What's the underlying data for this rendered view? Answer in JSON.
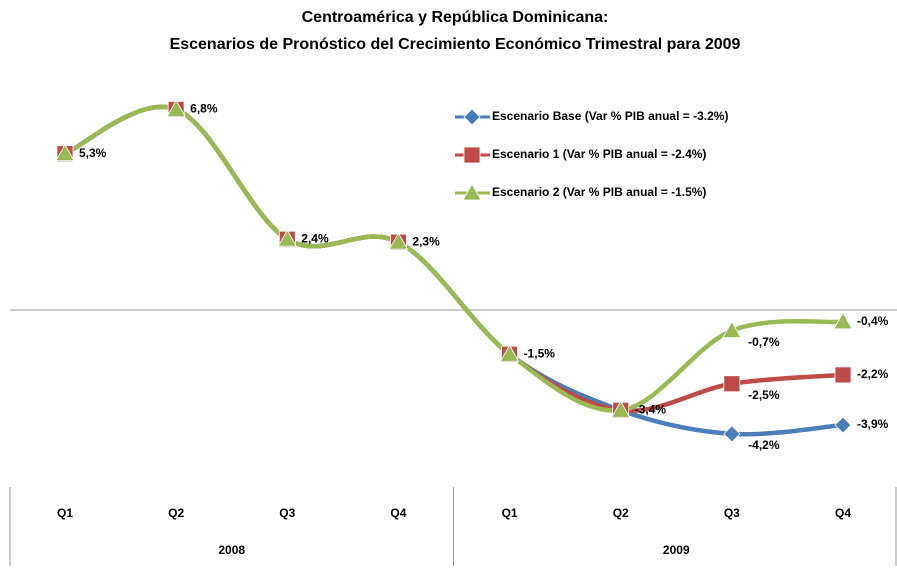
{
  "chart_data": {
    "type": "line",
    "title": [
      "Centroamérica y República Dominicana:",
      "Escenarios de Pronóstico del Crecimiento Económico Trimestral para 2009"
    ],
    "categories": [
      "Q1",
      "Q2",
      "Q3",
      "Q4",
      "Q1",
      "Q2",
      "Q3",
      "Q4"
    ],
    "groups": [
      "2008",
      "2009"
    ],
    "series": [
      {
        "name": "Escenario Base (Var % PIB anual = -3.2%)",
        "color": "#4a7ebb",
        "marker": "diamond",
        "values": [
          5.3,
          6.8,
          2.4,
          2.3,
          -1.5,
          -3.4,
          -4.2,
          -3.9
        ],
        "value_labels": [
          "5,3%",
          "6,8%",
          "2,4%",
          "2,3%",
          "-1,5%",
          "-3,4%",
          "-4,2%",
          "-3,9%"
        ]
      },
      {
        "name": "Escenario 1 (Var % PIB anual = -2.4%)",
        "color": "#be4b48",
        "marker": "square",
        "values": [
          5.3,
          6.8,
          2.4,
          2.3,
          -1.5,
          -3.4,
          -2.5,
          -2.2
        ],
        "value_labels": [
          null,
          null,
          null,
          null,
          null,
          null,
          "-2,5%",
          "-2,2%"
        ]
      },
      {
        "name": "Escenario 2 (Var % PIB anual = -1.5%)",
        "color": "#98b954",
        "marker": "triangle",
        "values": [
          5.3,
          6.8,
          2.4,
          2.3,
          -1.5,
          -3.4,
          -0.7,
          -0.4
        ],
        "value_labels": [
          null,
          null,
          null,
          null,
          null,
          null,
          "-0,7%",
          "-0,4%"
        ]
      }
    ],
    "legend": "upper right",
    "smooth": true
  }
}
